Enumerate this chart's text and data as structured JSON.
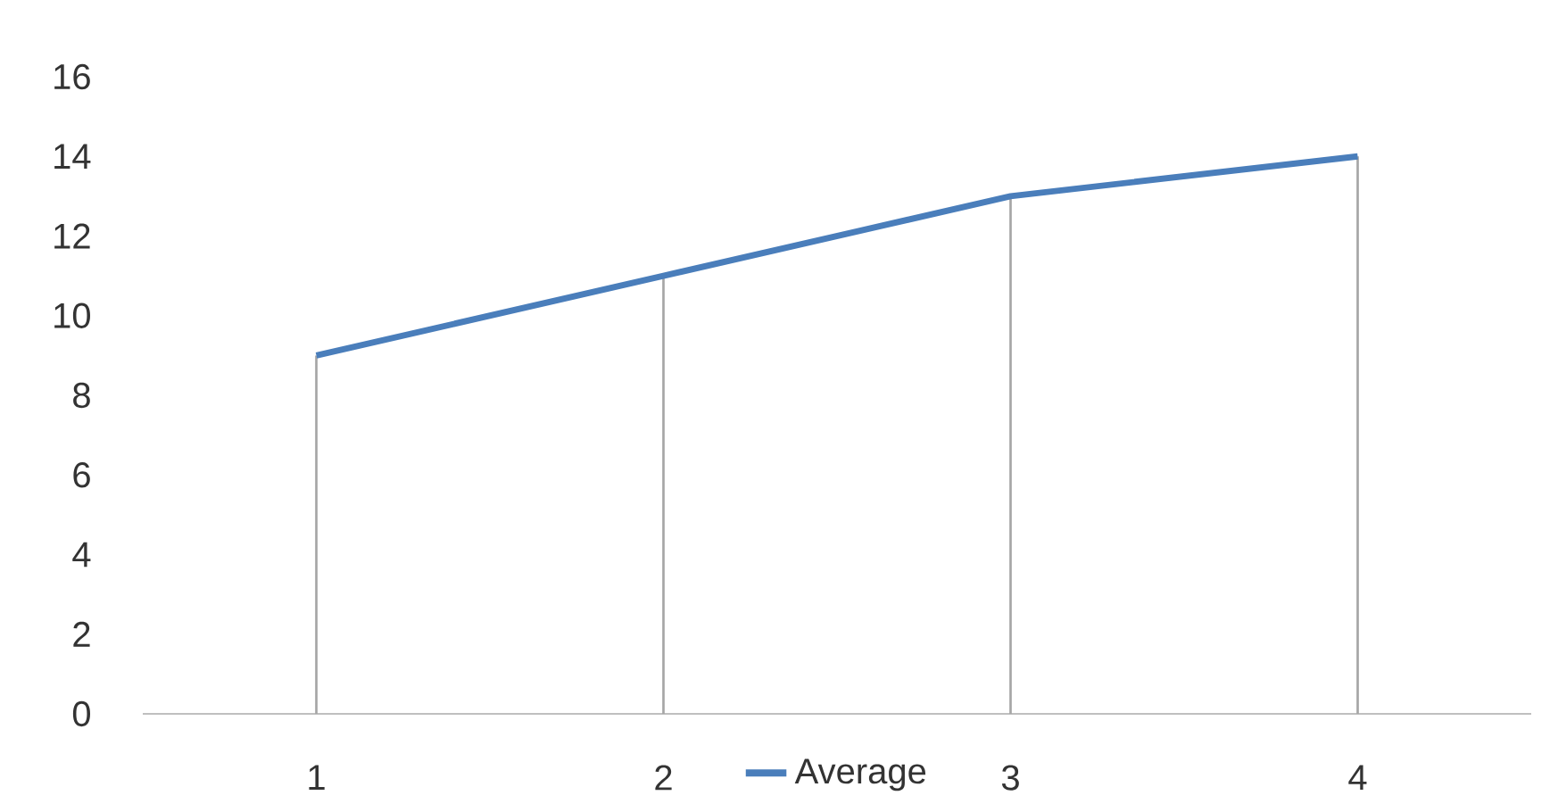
{
  "chart_data": {
    "type": "line",
    "categories": [
      "1",
      "2",
      "3",
      "4"
    ],
    "series": [
      {
        "name": "Average",
        "color": "#4a7ebb",
        "values": [
          9,
          11,
          13,
          14
        ]
      },
      {
        "type": "bar",
        "color": "#a6a6a6",
        "values": [
          9,
          11,
          13,
          14
        ]
      }
    ],
    "ylim": [
      0,
      16
    ],
    "yticks": [
      0,
      2,
      4,
      6,
      8,
      10,
      12,
      14,
      16
    ],
    "grid": false,
    "legend": "bottom",
    "marker": "none",
    "line_style": "solid"
  }
}
